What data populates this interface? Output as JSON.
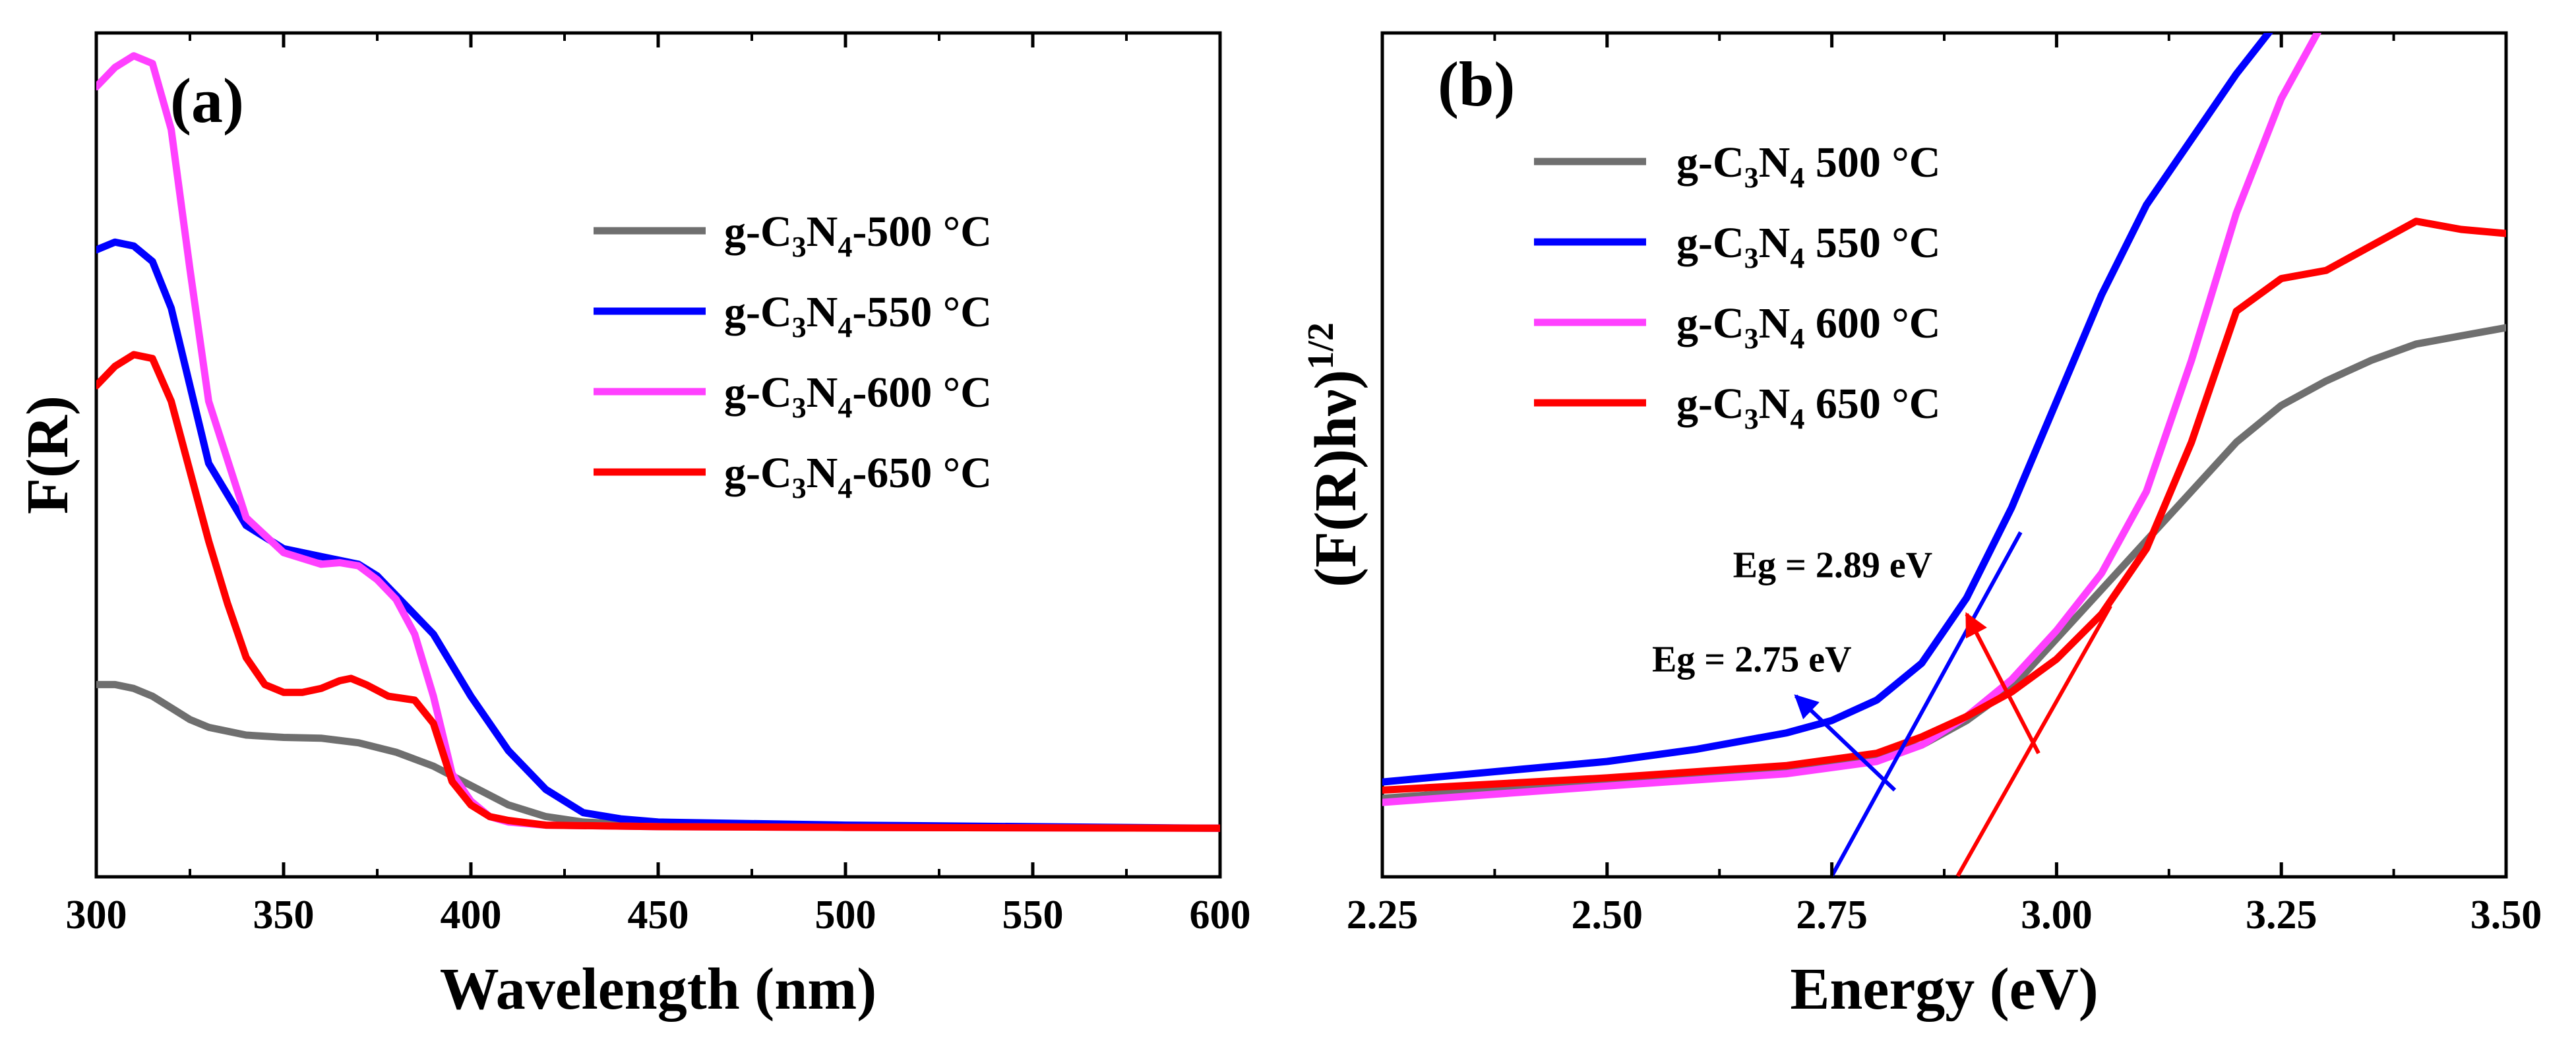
{
  "chart_data": [
    {
      "type": "line",
      "panel_label": "(a)",
      "xlabel": "Wavelength (nm)",
      "ylabel": "F(R)",
      "xlim": [
        300,
        600
      ],
      "ylim": [
        0,
        1
      ],
      "xticks": [
        300,
        350,
        400,
        450,
        500,
        550,
        600
      ],
      "xtick_labels": [
        "300",
        "350",
        "400",
        "450",
        "500",
        "550",
        "600"
      ],
      "y_ticks_shown": false,
      "legend_location": "right",
      "series": [
        {
          "name": "g-C3N4-500 °C",
          "legend": {
            "pre": "g-C",
            "sub1": "3",
            "mid": "N",
            "sub2": "4",
            "post": "-500 °C"
          },
          "color": "#6f6f6f",
          "points": [
            [
              300,
              0.215
            ],
            [
              305,
              0.215
            ],
            [
              310,
              0.21
            ],
            [
              315,
              0.2
            ],
            [
              320,
              0.185
            ],
            [
              325,
              0.17
            ],
            [
              330,
              0.16
            ],
            [
              340,
              0.15
            ],
            [
              350,
              0.147
            ],
            [
              360,
              0.146
            ],
            [
              370,
              0.14
            ],
            [
              380,
              0.128
            ],
            [
              390,
              0.11
            ],
            [
              400,
              0.085
            ],
            [
              410,
              0.06
            ],
            [
              420,
              0.045
            ],
            [
              430,
              0.038
            ],
            [
              450,
              0.034
            ],
            [
              500,
              0.032
            ],
            [
              550,
              0.031
            ],
            [
              600,
              0.03
            ]
          ]
        },
        {
          "name": "g-C3N4-550 °C",
          "legend": {
            "pre": "g-C",
            "sub1": "3",
            "mid": "N",
            "sub2": "4",
            "post": "-550 °C"
          },
          "color": "#0000ff",
          "points": [
            [
              300,
              0.775
            ],
            [
              305,
              0.785
            ],
            [
              310,
              0.78
            ],
            [
              315,
              0.76
            ],
            [
              320,
              0.7
            ],
            [
              325,
              0.6
            ],
            [
              330,
              0.5
            ],
            [
              340,
              0.42
            ],
            [
              350,
              0.39
            ],
            [
              360,
              0.38
            ],
            [
              370,
              0.37
            ],
            [
              375,
              0.355
            ],
            [
              380,
              0.33
            ],
            [
              390,
              0.28
            ],
            [
              400,
              0.2
            ],
            [
              410,
              0.13
            ],
            [
              420,
              0.08
            ],
            [
              430,
              0.05
            ],
            [
              440,
              0.042
            ],
            [
              450,
              0.038
            ],
            [
              500,
              0.034
            ],
            [
              550,
              0.032
            ],
            [
              600,
              0.03
            ]
          ]
        },
        {
          "name": "g-C3N4-600 °C",
          "legend": {
            "pre": "g-C",
            "sub1": "3",
            "mid": "N",
            "sub2": "4",
            "post": "-600 °C"
          },
          "color": "#ff40ff",
          "points": [
            [
              300,
              0.985
            ],
            [
              305,
              1.01
            ],
            [
              310,
              1.025
            ],
            [
              315,
              1.015
            ],
            [
              320,
              0.93
            ],
            [
              325,
              0.75
            ],
            [
              330,
              0.58
            ],
            [
              340,
              0.43
            ],
            [
              350,
              0.385
            ],
            [
              360,
              0.37
            ],
            [
              365,
              0.372
            ],
            [
              370,
              0.368
            ],
            [
              375,
              0.35
            ],
            [
              380,
              0.325
            ],
            [
              385,
              0.28
            ],
            [
              390,
              0.2
            ],
            [
              395,
              0.1
            ],
            [
              400,
              0.065
            ],
            [
              405,
              0.045
            ],
            [
              410,
              0.038
            ],
            [
              420,
              0.034
            ],
            [
              450,
              0.032
            ],
            [
              500,
              0.031
            ],
            [
              600,
              0.03
            ]
          ]
        },
        {
          "name": "g-C3N4-650 °C",
          "legend": {
            "pre": "g-C",
            "sub1": "3",
            "mid": "N",
            "sub2": "4",
            "post": "-650 °C"
          },
          "color": "#ff0000",
          "points": [
            [
              300,
              0.6
            ],
            [
              305,
              0.625
            ],
            [
              310,
              0.64
            ],
            [
              315,
              0.635
            ],
            [
              320,
              0.58
            ],
            [
              325,
              0.49
            ],
            [
              330,
              0.4
            ],
            [
              335,
              0.32
            ],
            [
              340,
              0.25
            ],
            [
              345,
              0.215
            ],
            [
              350,
              0.205
            ],
            [
              355,
              0.205
            ],
            [
              360,
              0.21
            ],
            [
              365,
              0.22
            ],
            [
              368,
              0.223
            ],
            [
              372,
              0.215
            ],
            [
              378,
              0.2
            ],
            [
              385,
              0.195
            ],
            [
              390,
              0.165
            ],
            [
              395,
              0.09
            ],
            [
              400,
              0.06
            ],
            [
              405,
              0.045
            ],
            [
              410,
              0.04
            ],
            [
              420,
              0.034
            ],
            [
              450,
              0.032
            ],
            [
              500,
              0.031
            ],
            [
              600,
              0.03
            ]
          ]
        }
      ]
    },
    {
      "type": "line",
      "panel_label": "(b)",
      "xlabel": "Energy (eV)",
      "ylabel": "(F(R)hν)",
      "ylabel_superscript": "1/2",
      "xlim": [
        2.25,
        3.5
      ],
      "ylim": [
        0,
        1
      ],
      "xticks": [
        2.25,
        2.5,
        2.75,
        3.0,
        3.25,
        3.5
      ],
      "xtick_labels": [
        "2.25",
        "2.50",
        "2.75",
        "3.00",
        "3.25",
        "3.50"
      ],
      "y_ticks_shown": false,
      "legend_location": "top-left",
      "series": [
        {
          "name": "g-C3N4 500 °C",
          "legend": {
            "pre": "g-C",
            "sub1": "3",
            "mid": "N",
            "sub2": "4",
            "post": " 500 °C"
          },
          "color": "#6f6f6f",
          "points": [
            [
              2.25,
              0.065
            ],
            [
              2.5,
              0.085
            ],
            [
              2.7,
              0.1
            ],
            [
              2.8,
              0.115
            ],
            [
              2.85,
              0.13
            ],
            [
              2.9,
              0.16
            ],
            [
              2.95,
              0.2
            ],
            [
              3.0,
              0.26
            ],
            [
              3.05,
              0.32
            ],
            [
              3.1,
              0.38
            ],
            [
              3.15,
              0.44
            ],
            [
              3.2,
              0.5
            ],
            [
              3.25,
              0.545
            ],
            [
              3.3,
              0.575
            ],
            [
              3.35,
              0.6
            ],
            [
              3.4,
              0.62
            ],
            [
              3.45,
              0.63
            ],
            [
              3.5,
              0.64
            ]
          ]
        },
        {
          "name": "g-C3N4 550 °C",
          "legend": {
            "pre": "g-C",
            "sub1": "3",
            "mid": "N",
            "sub2": "4",
            "post": " 550 °C"
          },
          "color": "#0000ff",
          "points": [
            [
              2.25,
              0.085
            ],
            [
              2.4,
              0.1
            ],
            [
              2.5,
              0.11
            ],
            [
              2.6,
              0.125
            ],
            [
              2.7,
              0.145
            ],
            [
              2.75,
              0.16
            ],
            [
              2.8,
              0.185
            ],
            [
              2.85,
              0.23
            ],
            [
              2.9,
              0.31
            ],
            [
              2.95,
              0.42
            ],
            [
              3.0,
              0.55
            ],
            [
              3.05,
              0.68
            ],
            [
              3.1,
              0.79
            ],
            [
              3.15,
              0.87
            ],
            [
              3.2,
              0.95
            ],
            [
              3.25,
              1.02
            ]
          ]
        },
        {
          "name": "g-C3N4 600 °C",
          "legend": {
            "pre": "g-C",
            "sub1": "3",
            "mid": "N",
            "sub2": "4",
            "post": " 600 °C"
          },
          "color": "#ff40ff",
          "points": [
            [
              2.25,
              0.06
            ],
            [
              2.5,
              0.08
            ],
            [
              2.7,
              0.095
            ],
            [
              2.8,
              0.11
            ],
            [
              2.85,
              0.13
            ],
            [
              2.9,
              0.165
            ],
            [
              2.95,
              0.21
            ],
            [
              3.0,
              0.27
            ],
            [
              3.05,
              0.34
            ],
            [
              3.1,
              0.44
            ],
            [
              3.15,
              0.6
            ],
            [
              3.2,
              0.78
            ],
            [
              3.25,
              0.92
            ],
            [
              3.3,
              1.02
            ]
          ]
        },
        {
          "name": "g-C3N4 650 °C",
          "legend": {
            "pre": "g-C",
            "sub1": "3",
            "mid": "N",
            "sub2": "4",
            "post": " 650 °C"
          },
          "color": "#ff0000",
          "points": [
            [
              2.25,
              0.075
            ],
            [
              2.5,
              0.09
            ],
            [
              2.7,
              0.105
            ],
            [
              2.8,
              0.12
            ],
            [
              2.85,
              0.14
            ],
            [
              2.9,
              0.165
            ],
            [
              2.95,
              0.195
            ],
            [
              3.0,
              0.235
            ],
            [
              3.05,
              0.29
            ],
            [
              3.1,
              0.37
            ],
            [
              3.15,
              0.5
            ],
            [
              3.2,
              0.66
            ],
            [
              3.25,
              0.7
            ],
            [
              3.3,
              0.71
            ],
            [
              3.35,
              0.74
            ],
            [
              3.4,
              0.77
            ],
            [
              3.45,
              0.76
            ],
            [
              3.5,
              0.755
            ]
          ]
        }
      ],
      "tangent_lines": [
        {
          "color": "#0000ff",
          "from": [
            2.75,
            -0.03
          ],
          "to": [
            2.96,
            0.39
          ]
        },
        {
          "color": "#ff0000",
          "from": [
            2.89,
            -0.03
          ],
          "to": [
            3.06,
            0.3
          ]
        }
      ],
      "annotations": [
        {
          "text": "Eg = 2.75 eV",
          "color": "#0000ff",
          "label_at": [
            2.55,
            0.22
          ],
          "arrow_from": [
            2.82,
            0.075
          ],
          "arrow_to": [
            2.71,
            0.19
          ]
        },
        {
          "text": "Eg = 2.89 eV",
          "color": "#ff0000",
          "label_at": [
            2.64,
            0.335
          ],
          "arrow_from": [
            2.98,
            0.12
          ],
          "arrow_to": [
            2.9,
            0.29
          ]
        }
      ]
    }
  ]
}
